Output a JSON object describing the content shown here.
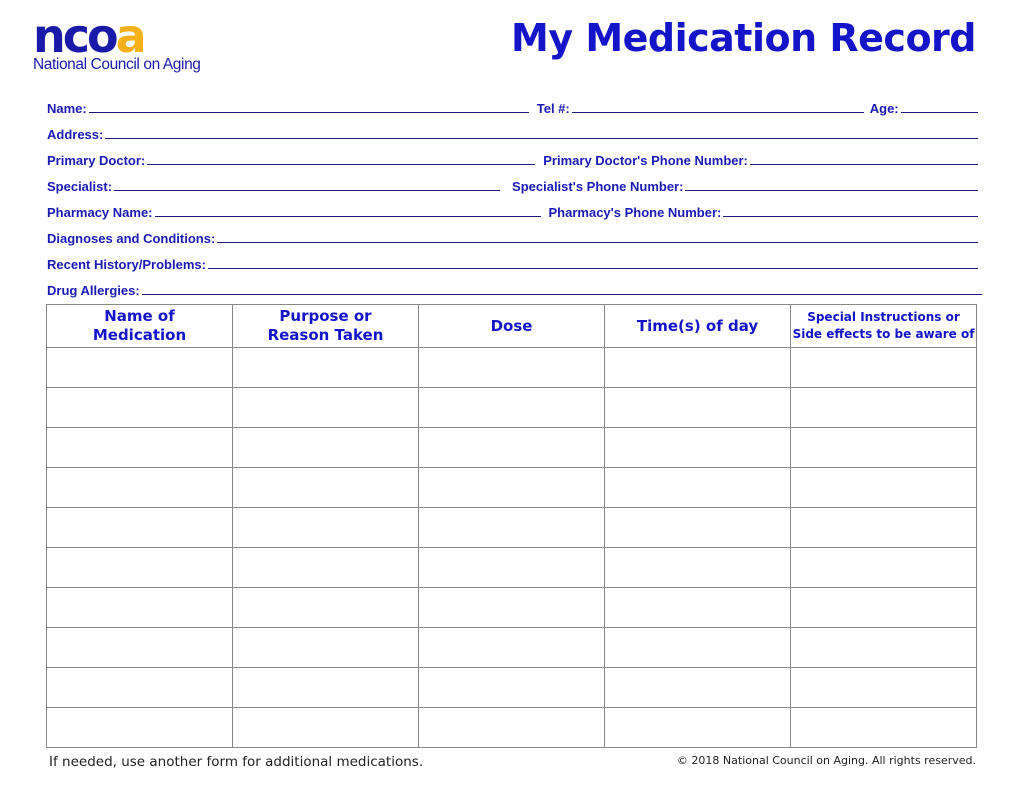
{
  "logo": {
    "mark_blue": "nco",
    "mark_orange": "a",
    "subtitle": "National Council on Aging"
  },
  "title": "My Medication Record",
  "fields": {
    "name": "Name:",
    "tel": "Tel #:",
    "age": "Age:",
    "address": "Address:",
    "primary_doctor": "Primary Doctor:",
    "primary_doctor_phone": "Primary Doctor's Phone Number:",
    "specialist": "Specialist:",
    "specialist_phone": "Specialist's  Phone  Number:",
    "pharmacy": "Pharmacy Name:",
    "pharmacy_phone": "Pharmacy's Phone Number:",
    "diagnoses": "Diagnoses and Conditions:",
    "history": "Recent History/Problems:",
    "allergies": "Drug Allergies:"
  },
  "table": {
    "headers": [
      [
        "Name of",
        "Medication"
      ],
      [
        "Purpose or",
        "Reason Taken"
      ],
      [
        "Dose",
        ""
      ],
      [
        "Time(s) of day",
        ""
      ],
      [
        "Special Instructions or",
        "Side effects to be aware of"
      ]
    ],
    "rows": 10
  },
  "footer": {
    "note": "If needed, use another form for additional medications.",
    "copyright": "© 2018 National Council on Aging. All rights reserved."
  },
  "colors": {
    "text": "#1a1ab4",
    "logo_orange": "#f5b01a"
  }
}
